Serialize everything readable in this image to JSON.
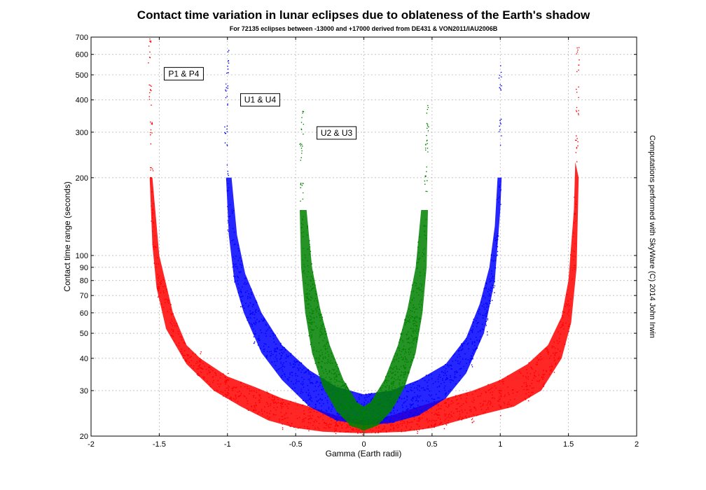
{
  "chart_data": {
    "type": "scatter",
    "title": "Contact time variation in lunar eclipses due to oblateness of the Earth's shadow",
    "subtitle": "For 72135 eclipses between -13000 and +17000 derived from DE431 & VON2011/IAU2006B",
    "xlabel": "Gamma (Earth radii)",
    "ylabel": "Contact time range (seconds)",
    "credit": "Computations performed with SkyWare (C) 2014 John Irwin",
    "x_scale": "linear",
    "y_scale": "log",
    "xlim": [
      -2,
      2
    ],
    "ylim": [
      20,
      700
    ],
    "grid": true,
    "x_ticks": [
      -2,
      -1.5,
      -1,
      -0.5,
      0,
      0.5,
      1,
      1.5,
      2
    ],
    "x_tick_labels": [
      "-2",
      "-1.5",
      "-1",
      "-0.5",
      "0",
      "0.5",
      "1",
      "1.5",
      "2"
    ],
    "y_ticks": [
      20,
      30,
      40,
      50,
      60,
      70,
      80,
      90,
      100,
      200,
      300,
      400,
      500,
      600,
      700
    ],
    "y_tick_labels": [
      "20",
      "30",
      "40",
      "50",
      "60",
      "70",
      "80",
      "90",
      "100",
      "200",
      "300",
      "400",
      "500",
      "600",
      "700"
    ],
    "series": [
      {
        "name": "P1 & P4",
        "color": "#ff0000",
        "points": [
          [
            -1.57,
            620
          ],
          [
            -1.565,
            430
          ],
          [
            -1.56,
            300
          ],
          [
            -1.555,
            200
          ],
          [
            -1.55,
            150
          ],
          [
            -1.54,
            115
          ],
          [
            -1.5,
            75
          ],
          [
            -1.4,
            52
          ],
          [
            -1.2,
            38
          ],
          [
            -1.0,
            32
          ],
          [
            -0.8,
            28
          ],
          [
            -0.6,
            24
          ],
          [
            -0.4,
            22
          ],
          [
            -0.2,
            21
          ],
          [
            0,
            21
          ],
          [
            0.2,
            21
          ],
          [
            0.4,
            22
          ],
          [
            0.6,
            24
          ],
          [
            0.8,
            25
          ],
          [
            1.0,
            27
          ],
          [
            1.2,
            30
          ],
          [
            1.4,
            40
          ],
          [
            1.5,
            60
          ],
          [
            1.54,
            100
          ],
          [
            1.55,
            150
          ],
          [
            1.56,
            260
          ],
          [
            1.565,
            400
          ],
          [
            1.57,
            570
          ]
        ],
        "upper_band": [
          [
            -1.55,
            200
          ],
          [
            -1.5,
            100
          ],
          [
            -1.4,
            60
          ],
          [
            -1.3,
            45
          ],
          [
            -1.2,
            40
          ],
          [
            -1.0,
            34
          ],
          [
            -0.8,
            31
          ],
          [
            -0.6,
            28
          ],
          [
            -0.4,
            26
          ],
          [
            -0.2,
            24
          ],
          [
            0,
            23
          ],
          [
            0.2,
            24
          ],
          [
            0.4,
            26
          ],
          [
            0.6,
            28
          ],
          [
            0.8,
            30
          ],
          [
            1.0,
            33
          ],
          [
            1.2,
            38
          ],
          [
            1.35,
            45
          ],
          [
            1.45,
            58
          ],
          [
            1.5,
            80
          ],
          [
            1.54,
            150
          ],
          [
            1.55,
            230
          ]
        ],
        "lower_band": [
          [
            -1.57,
            200
          ],
          [
            -1.55,
            110
          ],
          [
            -1.52,
            75
          ],
          [
            -1.45,
            52
          ],
          [
            -1.3,
            38
          ],
          [
            -1.1,
            30
          ],
          [
            -0.9,
            26
          ],
          [
            -0.7,
            23
          ],
          [
            -0.5,
            21.5
          ],
          [
            -0.3,
            20.8
          ],
          [
            0,
            20.5
          ],
          [
            0.3,
            20.8
          ],
          [
            0.5,
            21.5
          ],
          [
            0.7,
            23
          ],
          [
            0.9,
            24.5
          ],
          [
            1.1,
            26
          ],
          [
            1.3,
            30
          ],
          [
            1.45,
            40
          ],
          [
            1.52,
            55
          ],
          [
            1.56,
            90
          ],
          [
            1.575,
            200
          ]
        ]
      },
      {
        "name": "U1 & U4",
        "color": "#0000ff",
        "points": [
          [
            -1.0,
            560
          ],
          [
            -1.005,
            420
          ],
          [
            -1.01,
            300
          ],
          [
            -1.0,
            200
          ],
          [
            -0.99,
            140
          ],
          [
            -0.95,
            90
          ],
          [
            -0.9,
            70
          ],
          [
            -0.8,
            52
          ],
          [
            -0.6,
            38
          ],
          [
            -0.4,
            30
          ],
          [
            -0.2,
            26
          ],
          [
            0,
            24
          ],
          [
            0.2,
            25
          ],
          [
            0.4,
            27
          ],
          [
            0.6,
            32
          ],
          [
            0.8,
            42
          ],
          [
            0.9,
            55
          ],
          [
            0.95,
            75
          ],
          [
            0.98,
            110
          ],
          [
            0.995,
            180
          ],
          [
            1.0,
            300
          ],
          [
            1.0,
            490
          ]
        ],
        "upper_band": [
          [
            -0.97,
            200
          ],
          [
            -0.93,
            120
          ],
          [
            -0.87,
            85
          ],
          [
            -0.75,
            60
          ],
          [
            -0.6,
            45
          ],
          [
            -0.4,
            36
          ],
          [
            -0.2,
            31
          ],
          [
            0,
            29
          ],
          [
            0.2,
            30
          ],
          [
            0.4,
            33
          ],
          [
            0.6,
            38
          ],
          [
            0.75,
            48
          ],
          [
            0.85,
            65
          ],
          [
            0.92,
            90
          ],
          [
            0.96,
            130
          ],
          [
            0.98,
            200
          ]
        ],
        "lower_band": [
          [
            -1.01,
            200
          ],
          [
            -0.99,
            120
          ],
          [
            -0.95,
            80
          ],
          [
            -0.88,
            60
          ],
          [
            -0.75,
            42
          ],
          [
            -0.6,
            33
          ],
          [
            -0.4,
            26
          ],
          [
            -0.2,
            23
          ],
          [
            0,
            22
          ],
          [
            0.2,
            22.5
          ],
          [
            0.4,
            24
          ],
          [
            0.6,
            28
          ],
          [
            0.75,
            35
          ],
          [
            0.88,
            50
          ],
          [
            0.96,
            80
          ],
          [
            1.0,
            150
          ],
          [
            1.01,
            200
          ]
        ]
      },
      {
        "name": "U2 & U3",
        "color": "#008000",
        "points": [
          [
            -0.45,
            330
          ],
          [
            -0.46,
            250
          ],
          [
            -0.455,
            180
          ],
          [
            -0.45,
            130
          ],
          [
            -0.44,
            95
          ],
          [
            -0.42,
            70
          ],
          [
            -0.38,
            52
          ],
          [
            -0.3,
            38
          ],
          [
            -0.2,
            30
          ],
          [
            -0.1,
            25
          ],
          [
            0,
            23
          ],
          [
            0.1,
            25
          ],
          [
            0.2,
            30
          ],
          [
            0.3,
            38
          ],
          [
            0.38,
            52
          ],
          [
            0.42,
            70
          ],
          [
            0.44,
            95
          ],
          [
            0.45,
            130
          ],
          [
            0.455,
            200
          ],
          [
            0.46,
            280
          ],
          [
            0.47,
            340
          ]
        ],
        "upper_band": [
          [
            -0.42,
            150
          ],
          [
            -0.38,
            90
          ],
          [
            -0.32,
            62
          ],
          [
            -0.25,
            45
          ],
          [
            -0.15,
            33
          ],
          [
            -0.05,
            27
          ],
          [
            0,
            26
          ],
          [
            0.05,
            27
          ],
          [
            0.15,
            33
          ],
          [
            0.25,
            45
          ],
          [
            0.32,
            62
          ],
          [
            0.38,
            90
          ],
          [
            0.42,
            150
          ]
        ],
        "lower_band": [
          [
            -0.47,
            150
          ],
          [
            -0.46,
            90
          ],
          [
            -0.43,
            60
          ],
          [
            -0.38,
            42
          ],
          [
            -0.3,
            31
          ],
          [
            -0.2,
            25
          ],
          [
            -0.1,
            22
          ],
          [
            0,
            21
          ],
          [
            0.1,
            22
          ],
          [
            0.2,
            25
          ],
          [
            0.3,
            31
          ],
          [
            0.38,
            42
          ],
          [
            0.43,
            60
          ],
          [
            0.46,
            90
          ],
          [
            0.47,
            150
          ]
        ]
      }
    ],
    "annotations": [
      {
        "text": "P1 & P4",
        "x": -1.32,
        "y": 505
      },
      {
        "text": "U1 & U4",
        "x": -0.76,
        "y": 400
      },
      {
        "text": "U2 & U3",
        "x": -0.2,
        "y": 298
      }
    ]
  }
}
